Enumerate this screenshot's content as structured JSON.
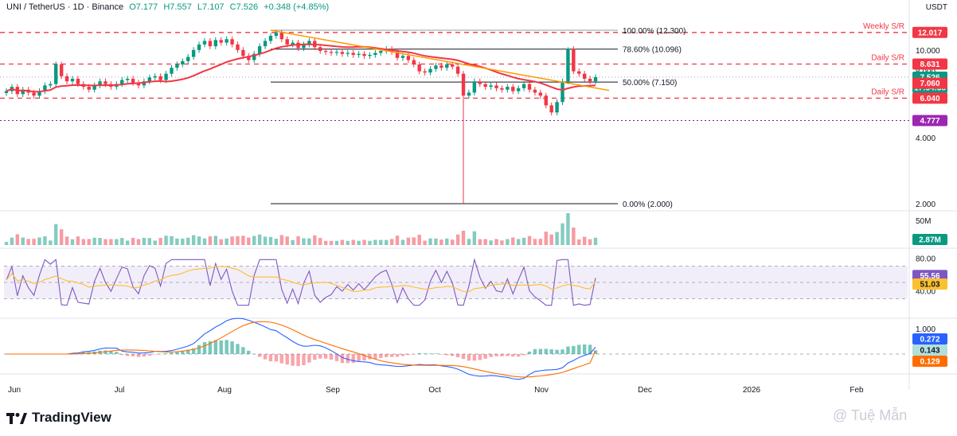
{
  "header": {
    "symbol": "UNI / TetherUS · 1D · Binance",
    "open": "O7.177",
    "high": "H7.557",
    "low": "L7.107",
    "close": "C7.526",
    "change": "+0.348 (+4.85%)"
  },
  "currency": "USDT",
  "brand": "TradingView",
  "watermark": "@ Tuệ Mẫn",
  "colors": {
    "up": "#089981",
    "down": "#f23645",
    "ma": "#f23645",
    "trendline": "#ff9800",
    "rsi": "#7e57c2",
    "rsi_ma": "#fbc02d",
    "macd": "#2962ff",
    "signal": "#ff6d00"
  },
  "chart_data": {
    "type": "candlestick",
    "x_ticks": [
      "Jun",
      "Jul",
      "Aug",
      "Sep",
      "Oct",
      "Nov",
      "Dec",
      "2026",
      "Feb"
    ],
    "price_axis_ticks": [
      "10.000",
      "8.000",
      "4.000",
      "2.000"
    ],
    "price_series": {
      "months": [
        "Jun",
        "Jul",
        "Aug",
        "Sep",
        "Oct",
        "Nov"
      ],
      "approx_close": [
        6.5,
        6.8,
        6.3,
        6.6,
        6.4,
        6.2,
        6.5,
        6.9,
        7.0,
        8.6,
        7.6,
        7.2,
        7.4,
        7.0,
        6.8,
        6.6,
        6.9,
        7.2,
        7.0,
        6.8,
        7.0,
        7.3,
        7.4,
        7.1,
        6.9,
        7.2,
        7.5,
        7.6,
        7.3,
        7.8,
        8.3,
        8.6,
        8.9,
        9.3,
        10.0,
        10.6,
        11.0,
        10.4,
        11.1,
        10.8,
        11.2,
        10.6,
        10.0,
        9.4,
        9.0,
        9.6,
        10.4,
        11.0,
        11.6,
        12.0,
        11.2,
        10.6,
        10.8,
        10.2,
        10.6,
        11.0,
        10.3,
        9.9,
        9.8,
        9.7,
        9.8,
        9.6,
        9.7,
        9.5,
        9.6,
        9.4,
        9.5,
        9.7,
        9.9,
        10.1,
        9.8,
        9.2,
        9.4,
        9.0,
        8.6,
        8.0,
        7.9,
        8.2,
        8.5,
        8.3,
        8.6,
        8.4,
        7.8,
        6.2,
        6.4,
        7.2,
        7.0,
        6.8,
        6.9,
        6.7,
        6.6,
        6.8,
        6.5,
        6.7,
        7.0,
        6.6,
        6.4,
        6.2,
        5.6,
        5.2,
        5.8,
        7.2,
        10.1,
        8.0,
        7.8,
        7.4,
        7.2,
        7.526
      ]
    },
    "fib_levels": [
      {
        "label": "100.00% (12.300)",
        "value": 12.3
      },
      {
        "label": "78.60% (10.096)",
        "value": 10.096
      },
      {
        "label": "50.00% (7.150)",
        "value": 7.15
      },
      {
        "label": "0.00% (2.000)",
        "value": 2.0
      }
    ],
    "sr_levels": [
      {
        "label": "Weekly S/R",
        "value": 12.017
      },
      {
        "label": "Daily S/R",
        "value": 8.631
      },
      {
        "label": "Daily S/R",
        "value": 6.04
      }
    ],
    "dotted_level": 4.777,
    "price_tags": [
      {
        "text": "12.017",
        "value": 12.017,
        "color": "#f23645"
      },
      {
        "text": "8.631",
        "value": 8.631,
        "color": "#f23645"
      },
      {
        "text": "7.526",
        "value": 7.526,
        "color": "#089981"
      },
      {
        "text": "17:54:38",
        "value": 7.3,
        "color": "#089981"
      },
      {
        "text": "7.060",
        "value": 7.06,
        "color": "#f23645"
      },
      {
        "text": "6.040",
        "value": 6.04,
        "color": "#f23645"
      },
      {
        "text": "4.777",
        "value": 4.777,
        "color": "#9c27b0"
      }
    ],
    "volume": {
      "axis_label": "50M",
      "last_tag": "2.87M"
    },
    "rsi": {
      "axis_ticks": [
        "80.00",
        "40.00"
      ],
      "rsi_tag": "55.56",
      "ma_tag": "51.03",
      "upper": 70,
      "lower": 30
    },
    "macd": {
      "axis_tick": "1.000",
      "macd_tag": "0.272",
      "hist_tag": "0.143",
      "signal_tag": "0.129"
    }
  }
}
